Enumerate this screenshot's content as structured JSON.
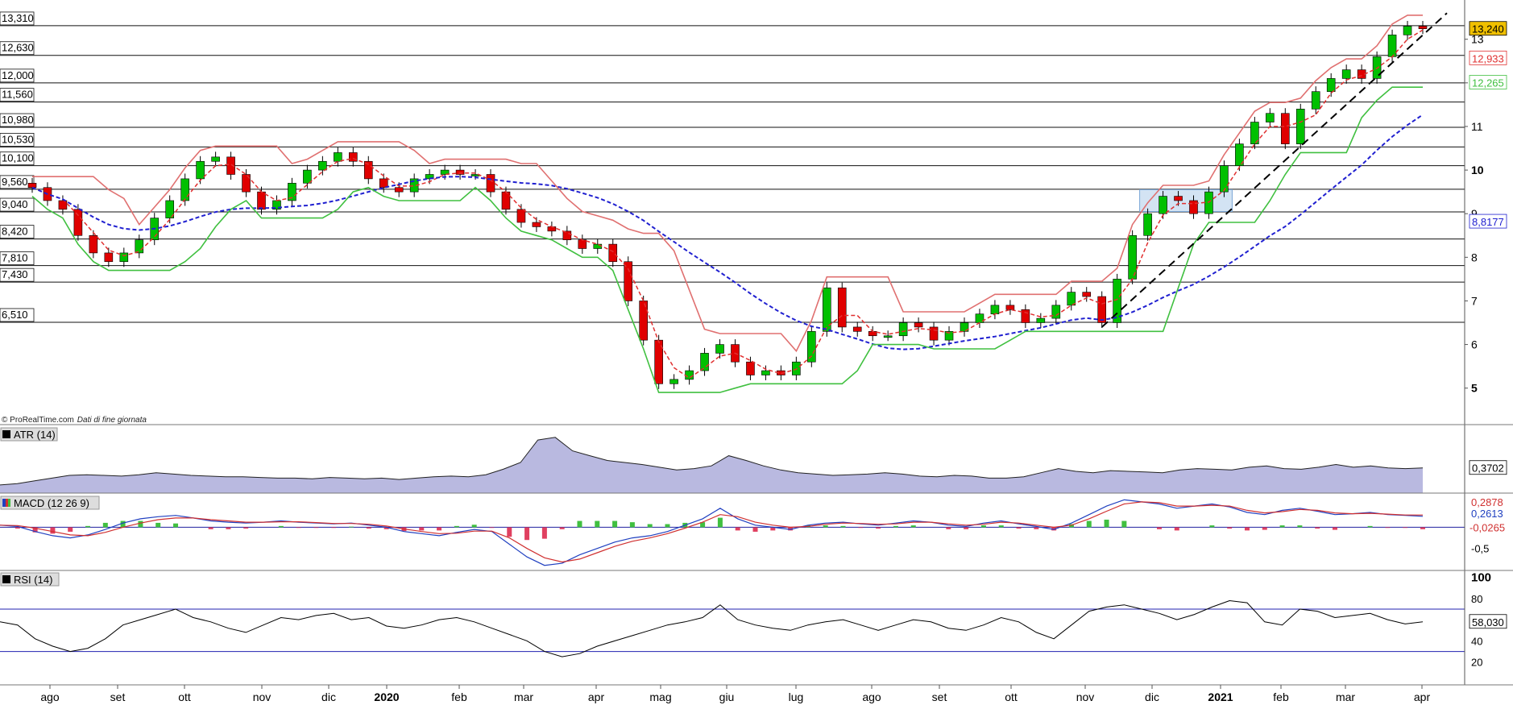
{
  "attribution": "© ProRealTime.com",
  "attribution_note": "Dati di fine giornata",
  "x_axis_labels": [
    "ago",
    "set",
    "ott",
    "nov",
    "dic",
    "2020",
    "feb",
    "mar",
    "apr",
    "mag",
    "giu",
    "lug",
    "ago",
    "set",
    "ott",
    "nov",
    "dic",
    "2021",
    "feb",
    "mar",
    "apr"
  ],
  "bold_x_labels": [
    "2020",
    "2021"
  ],
  "colors": {
    "up": "#00c000",
    "down": "#e00000",
    "ma_short": "#e03030",
    "stop_upper": "#e07070",
    "stop_lower": "#40c040",
    "ma_long": "#2020d0",
    "atr_fill": "#a8a8d8",
    "macd_line": "#2040c0",
    "macd_signal": "#d03030",
    "rsi_line": "#000000",
    "trend_line": "#000000",
    "last_price_bg": "#f0c000",
    "box": "#a8c8e8"
  },
  "chart_data": [
    {
      "type": "candlestick",
      "panel": "price",
      "x_start": "2019-07",
      "x_end": "2021-04",
      "ylim": [
        4.2,
        13.9
      ],
      "y_ticks": [
        5,
        6,
        7,
        8,
        9,
        10,
        11,
        12,
        13
      ],
      "bold_y_ticks": [
        5,
        10
      ],
      "horizontal_levels": [
        "13,310",
        "12,630",
        "12,000",
        "11,560",
        "10,980",
        "10,530",
        "10,100",
        "9,560",
        "9,040",
        "8,420",
        "7,810",
        "7,430",
        "6,510"
      ],
      "level_values": [
        13.31,
        12.63,
        12.0,
        11.56,
        10.98,
        10.53,
        10.1,
        9.56,
        9.04,
        8.42,
        7.81,
        7.43,
        6.51
      ],
      "closes": [
        9.6,
        9.3,
        9.1,
        8.5,
        8.1,
        7.9,
        8.1,
        8.4,
        8.9,
        9.3,
        9.8,
        10.2,
        10.3,
        9.9,
        9.5,
        9.1,
        9.3,
        9.7,
        10.0,
        10.2,
        10.4,
        10.2,
        9.8,
        9.6,
        9.5,
        9.8,
        9.9,
        10.0,
        9.9,
        9.9,
        9.5,
        9.1,
        8.8,
        8.7,
        8.6,
        8.4,
        8.2,
        8.3,
        7.9,
        7.0,
        6.1,
        5.1,
        5.2,
        5.4,
        5.8,
        6.0,
        5.6,
        5.3,
        5.4,
        5.3,
        5.6,
        6.3,
        7.3,
        6.4,
        6.3,
        6.2,
        6.2,
        6.5,
        6.4,
        6.1,
        6.3,
        6.5,
        6.7,
        6.9,
        6.8,
        6.5,
        6.6,
        6.9,
        7.2,
        7.1,
        6.5,
        7.5,
        8.5,
        9.0,
        9.4,
        9.3,
        9.0,
        9.5,
        10.1,
        10.6,
        11.1,
        11.3,
        10.6,
        11.4,
        11.8,
        12.1,
        12.3,
        12.1,
        12.6,
        13.1,
        13.3,
        13.24
      ],
      "series": [
        {
          "name": "",
          "last_value": "12,933"
        },
        {
          "name": "",
          "last_value": "12,265"
        },
        {
          "name": "",
          "last_value": "8,8177"
        }
      ],
      "last_price": "13,240"
    },
    {
      "type": "area",
      "panel": "atr",
      "title": "ATR (14)",
      "last_value": "0,3702",
      "values": [
        0.12,
        0.14,
        0.18,
        0.22,
        0.26,
        0.27,
        0.26,
        0.25,
        0.27,
        0.3,
        0.28,
        0.26,
        0.25,
        0.24,
        0.24,
        0.23,
        0.22,
        0.22,
        0.21,
        0.23,
        0.22,
        0.21,
        0.22,
        0.2,
        0.22,
        0.24,
        0.25,
        0.24,
        0.27,
        0.35,
        0.45,
        0.78,
        0.82,
        0.62,
        0.55,
        0.48,
        0.45,
        0.42,
        0.38,
        0.34,
        0.36,
        0.4,
        0.55,
        0.48,
        0.4,
        0.34,
        0.3,
        0.28,
        0.26,
        0.27,
        0.28,
        0.3,
        0.28,
        0.25,
        0.24,
        0.26,
        0.25,
        0.22,
        0.22,
        0.24,
        0.3,
        0.36,
        0.32,
        0.3,
        0.33,
        0.32,
        0.31,
        0.3,
        0.34,
        0.36,
        0.35,
        0.34,
        0.38,
        0.4,
        0.36,
        0.35,
        0.38,
        0.42,
        0.38,
        0.4,
        0.37,
        0.36,
        0.37
      ],
      "ylim": [
        0,
        0.9
      ]
    },
    {
      "type": "line",
      "panel": "macd",
      "title": "MACD (12 26 9)",
      "y_ticks": [
        "-0,5"
      ],
      "last_values": [
        "0,2878",
        "0,2613",
        "-0,0265"
      ],
      "macd": [
        0.05,
        0.02,
        -0.1,
        -0.2,
        -0.25,
        -0.18,
        -0.05,
        0.1,
        0.2,
        0.25,
        0.28,
        0.22,
        0.15,
        0.12,
        0.1,
        0.12,
        0.15,
        0.12,
        0.1,
        0.08,
        0.1,
        0.05,
        0.0,
        -0.1,
        -0.15,
        -0.2,
        -0.12,
        -0.05,
        -0.1,
        -0.4,
        -0.7,
        -0.9,
        -0.85,
        -0.65,
        -0.5,
        -0.35,
        -0.25,
        -0.2,
        -0.1,
        0.05,
        0.2,
        0.45,
        0.2,
        0.05,
        0.0,
        -0.05,
        0.05,
        0.1,
        0.12,
        0.08,
        0.05,
        0.1,
        0.15,
        0.12,
        0.05,
        0.02,
        0.1,
        0.15,
        0.08,
        0.02,
        -0.05,
        0.1,
        0.3,
        0.5,
        0.65,
        0.6,
        0.55,
        0.45,
        0.5,
        0.55,
        0.48,
        0.35,
        0.3,
        0.4,
        0.45,
        0.38,
        0.3,
        0.32,
        0.35,
        0.3,
        0.28,
        0.26
      ],
      "signal": [
        0.05,
        0.04,
        -0.02,
        -0.1,
        -0.18,
        -0.2,
        -0.12,
        0.0,
        0.1,
        0.18,
        0.22,
        0.22,
        0.18,
        0.15,
        0.12,
        0.12,
        0.13,
        0.13,
        0.11,
        0.09,
        0.09,
        0.07,
        0.03,
        -0.04,
        -0.1,
        -0.15,
        -0.14,
        -0.09,
        -0.09,
        -0.25,
        -0.5,
        -0.72,
        -0.82,
        -0.75,
        -0.6,
        -0.45,
        -0.33,
        -0.25,
        -0.15,
        -0.02,
        0.12,
        0.3,
        0.25,
        0.12,
        0.05,
        0.0,
        0.02,
        0.07,
        0.1,
        0.09,
        0.07,
        0.08,
        0.12,
        0.12,
        0.08,
        0.05,
        0.07,
        0.12,
        0.1,
        0.05,
        0.0,
        0.05,
        0.2,
        0.38,
        0.55,
        0.6,
        0.58,
        0.5,
        0.5,
        0.52,
        0.5,
        0.4,
        0.34,
        0.37,
        0.42,
        0.4,
        0.34,
        0.32,
        0.33,
        0.31,
        0.29,
        0.29
      ],
      "ylim": [
        -1.0,
        0.75
      ]
    },
    {
      "type": "line",
      "panel": "rsi",
      "title": "RSI (14)",
      "y_ticks": [
        100,
        80,
        60,
        40,
        20
      ],
      "bold_y_ticks": [
        100
      ],
      "last_value": "58,030",
      "upper_band": 70,
      "lower_band": 30,
      "values": [
        58,
        55,
        42,
        35,
        30,
        33,
        42,
        55,
        60,
        65,
        70,
        62,
        58,
        52,
        48,
        55,
        62,
        60,
        64,
        66,
        60,
        62,
        54,
        52,
        55,
        60,
        62,
        58,
        52,
        46,
        40,
        30,
        25,
        28,
        35,
        40,
        45,
        50,
        55,
        58,
        62,
        74,
        60,
        55,
        52,
        50,
        55,
        58,
        60,
        55,
        50,
        55,
        60,
        58,
        52,
        50,
        55,
        62,
        58,
        48,
        42,
        55,
        68,
        72,
        74,
        70,
        66,
        60,
        65,
        72,
        78,
        76,
        58,
        55,
        70,
        68,
        62,
        64,
        66,
        60,
        56,
        58
      ],
      "ylim": [
        0,
        105
      ]
    }
  ]
}
